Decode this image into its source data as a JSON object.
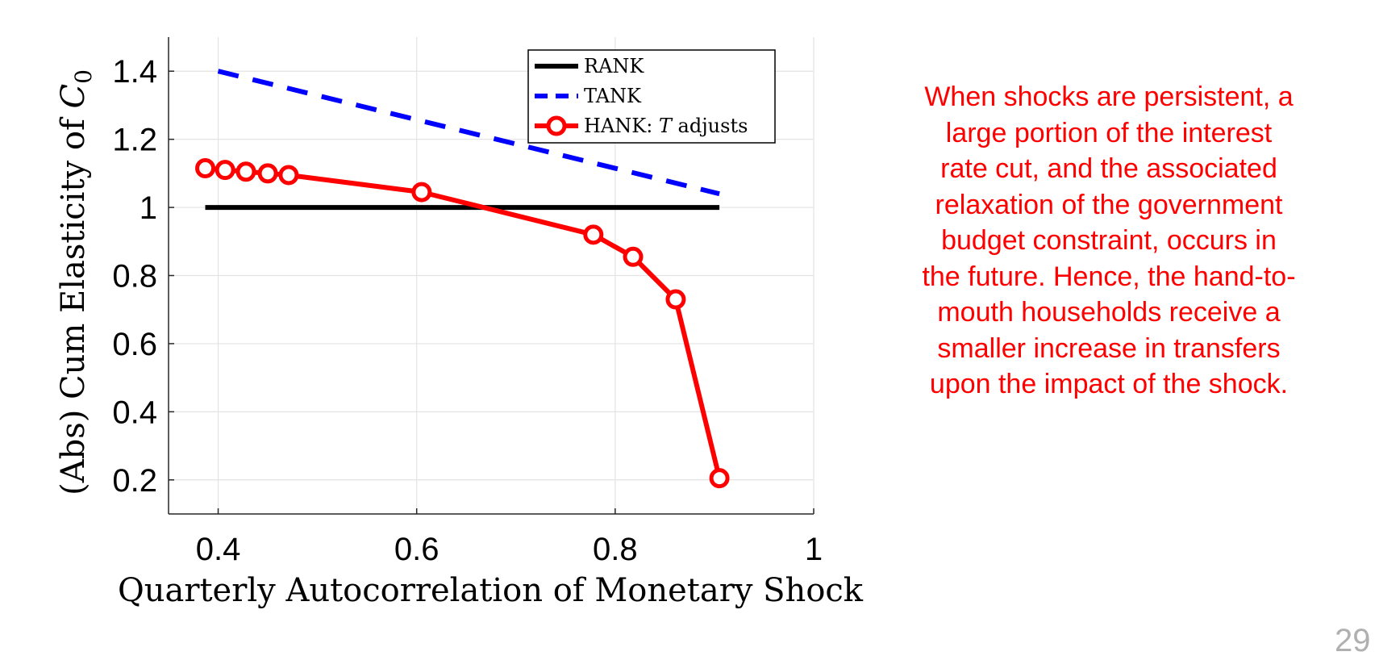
{
  "chart_data": {
    "type": "line",
    "xlabel": "Quarterly Autocorrelation of Monetary Shock",
    "ylabel_prefix": "(Abs) Cum Elasticity of ",
    "ylabel_var": "C",
    "ylabel_sub": "0",
    "xlim": [
      0.35,
      1.0
    ],
    "ylim": [
      0.1,
      1.5
    ],
    "xticks": [
      0.4,
      0.6,
      0.8,
      1.0
    ],
    "xtick_labels": [
      "0.4",
      "0.6",
      "0.8",
      "1"
    ],
    "yticks": [
      0.2,
      0.4,
      0.6,
      0.8,
      1.0,
      1.2,
      1.4
    ],
    "ytick_labels": [
      "0.2",
      "0.4",
      "0.6",
      "0.8",
      "1",
      "1.2",
      "1.4"
    ],
    "grid": true,
    "legend_position": "top-right",
    "series": [
      {
        "name": "RANK",
        "legend_label": "RANK",
        "color": "#000000",
        "style": "solid",
        "marker": "none",
        "x": [
          0.387,
          0.905
        ],
        "y": [
          1.0,
          1.0
        ]
      },
      {
        "name": "TANK",
        "legend_label": "TANK",
        "color": "#0000ff",
        "style": "dashed",
        "marker": "none",
        "x": [
          0.4,
          0.905
        ],
        "y": [
          1.4,
          1.04
        ]
      },
      {
        "name": "HANK: T adjusts",
        "legend_prefix": "HANK: ",
        "legend_var": "T",
        "legend_suffix": " adjusts",
        "color": "#ff0000",
        "style": "solid",
        "marker": "circle",
        "x": [
          0.387,
          0.407,
          0.428,
          0.45,
          0.471,
          0.605,
          0.778,
          0.818,
          0.861,
          0.905
        ],
        "y": [
          1.115,
          1.11,
          1.105,
          1.1,
          1.095,
          1.045,
          0.92,
          0.855,
          0.73,
          0.205
        ]
      }
    ]
  },
  "annotation": {
    "lines": [
      "When shocks are persistent, a",
      "large portion of the interest",
      "rate cut, and the associated",
      "relaxation of the government",
      "budget constraint, occurs in",
      "the future. Hence, the hand-to-",
      "mouth households receive a",
      "smaller increase in transfers",
      "upon the impact of the shock."
    ],
    "color": "#ff0000"
  },
  "page_number": "29"
}
